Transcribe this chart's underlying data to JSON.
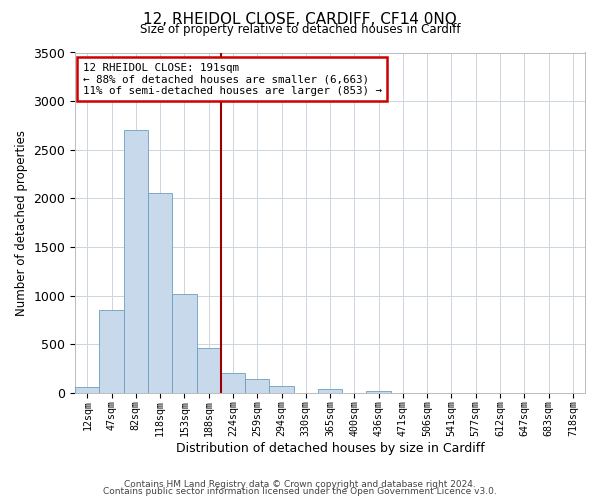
{
  "title1": "12, RHEIDOL CLOSE, CARDIFF, CF14 0NQ",
  "title2": "Size of property relative to detached houses in Cardiff",
  "xlabel": "Distribution of detached houses by size in Cardiff",
  "ylabel": "Number of detached properties",
  "bar_labels": [
    "12sqm",
    "47sqm",
    "82sqm",
    "118sqm",
    "153sqm",
    "188sqm",
    "224sqm",
    "259sqm",
    "294sqm",
    "330sqm",
    "365sqm",
    "400sqm",
    "436sqm",
    "471sqm",
    "506sqm",
    "541sqm",
    "577sqm",
    "612sqm",
    "647sqm",
    "683sqm",
    "718sqm"
  ],
  "bar_values": [
    60,
    850,
    2700,
    2060,
    1020,
    460,
    200,
    145,
    70,
    0,
    35,
    0,
    20,
    0,
    0,
    0,
    0,
    0,
    0,
    0,
    0
  ],
  "bar_color": "#c9d9ec",
  "bar_edgecolor": "#6a9fc0",
  "vline_x": 5.5,
  "vline_color": "#9b0000",
  "annotation_lines": [
    "12 RHEIDOL CLOSE: 191sqm",
    "← 88% of detached houses are smaller (6,663)",
    "11% of semi-detached houses are larger (853) →"
  ],
  "annotation_box_color": "#ffffff",
  "annotation_box_edgecolor": "#cc0000",
  "ylim": [
    0,
    3500
  ],
  "yticks": [
    0,
    500,
    1000,
    1500,
    2000,
    2500,
    3000,
    3500
  ],
  "footer1": "Contains HM Land Registry data © Crown copyright and database right 2024.",
  "footer2": "Contains public sector information licensed under the Open Government Licence v3.0.",
  "bg_color": "#ffffff",
  "grid_color": "#ccd5e0"
}
